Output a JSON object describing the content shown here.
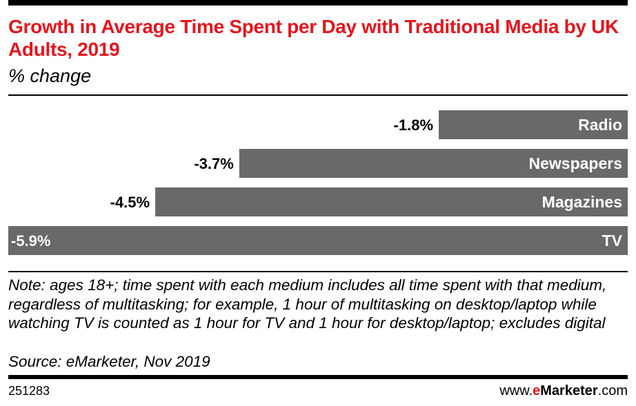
{
  "header": {
    "title": "Growth in Average Time Spent per Day with Traditional Media by UK Adults, 2019",
    "subtitle": "% change"
  },
  "colors": {
    "title": "#e8141c",
    "bar": "#696969",
    "bar_label": "#ffffff",
    "value_label": "#000000",
    "brand_accent": "#e8141c"
  },
  "chart_data": {
    "type": "bar",
    "orientation": "horizontal",
    "categories": [
      "Radio",
      "Newspapers",
      "Magazines",
      "TV"
    ],
    "values": [
      -1.8,
      -3.7,
      -4.5,
      -5.9
    ],
    "value_labels": [
      "-1.8%",
      "-3.7%",
      "-4.5%",
      "-5.9%"
    ],
    "title": "Growth in Average Time Spent per Day with Traditional Media by UK Adults, 2019",
    "subtitle": "% change",
    "xlim": [
      -5.9,
      0
    ],
    "grid": false,
    "legend": "none"
  },
  "footer": {
    "note": "Note: ages 18+; time spent with each medium includes all time spent with that medium, regardless of multitasking; for example, 1 hour of multitasking on desktop/laptop while watching TV is counted as 1 hour for TV and 1 hour for desktop/laptop; excludes digital",
    "source": "Source: eMarketer, Nov 2019",
    "chart_id": "251283",
    "brand_prefix": "www.",
    "brand_e": "e",
    "brand_name": "Marketer",
    "brand_suffix": ".com"
  }
}
